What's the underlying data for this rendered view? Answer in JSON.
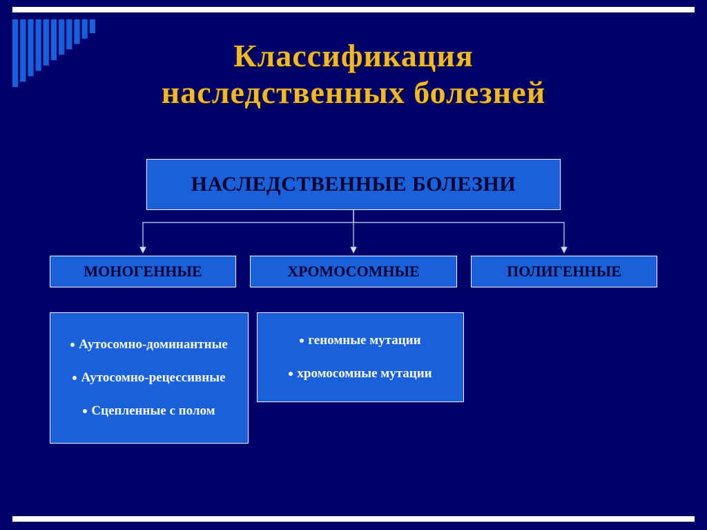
{
  "colors": {
    "background": "#00006b",
    "bar": "#ffffff",
    "stripe": "#1a60d8",
    "title": "#f0b828",
    "box_bg": "#1a60d8",
    "box_border": "#ffffff",
    "label_text": "#000033",
    "detail_text": "#ffffff",
    "bullet": "#ffffff",
    "arrow": "#c8e0ff"
  },
  "title": {
    "line1": "Классификация",
    "line2": "наследственных болезней",
    "fontsize": 46
  },
  "diagram": {
    "type": "tree",
    "root": {
      "label": "НАСЛЕДСТВЕННЫЕ БОЛЕЗНИ"
    },
    "children": [
      {
        "label": "МОНОГЕННЫЕ",
        "details": [
          "Аутосомно-доминантные",
          "Аутосомно-рецессивные",
          "Сцепленные с полом"
        ]
      },
      {
        "label": "ХРОМОСОМНЫЕ",
        "details": [
          "геномные мутации",
          "хромосомные мутации"
        ]
      },
      {
        "label": "ПОЛИГЕННЫЕ",
        "details": []
      }
    ]
  }
}
